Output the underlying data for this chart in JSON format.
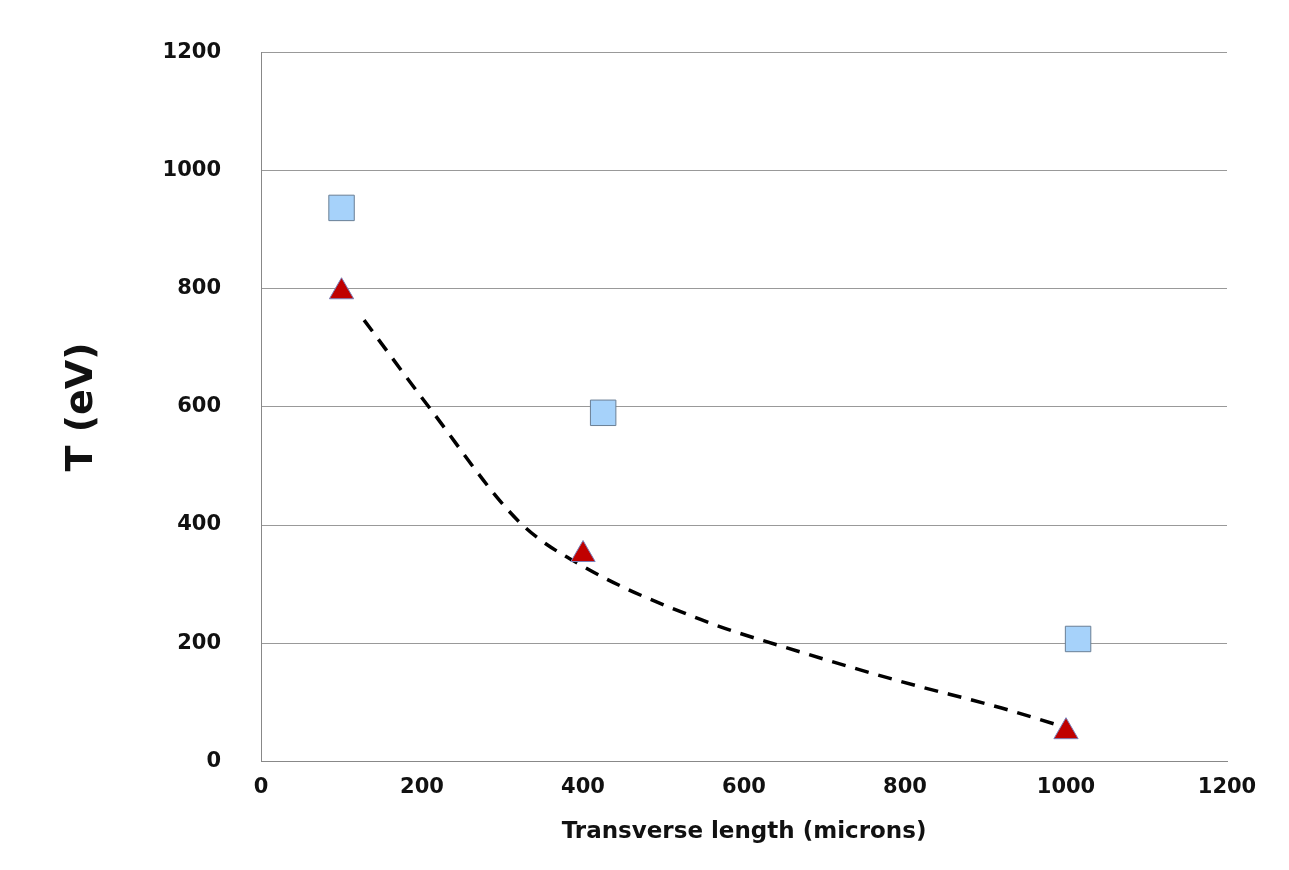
{
  "chart_data": {
    "type": "scatter",
    "xlabel": "Transverse length (microns)",
    "ylabel": "T (eV)",
    "xlim": [
      0,
      1200
    ],
    "xticks": [
      0,
      200,
      400,
      600,
      800,
      1000,
      1200
    ],
    "ylim": [
      0,
      1200
    ],
    "yticks": [
      0,
      200,
      400,
      600,
      800,
      1000,
      1200
    ],
    "grid": "y",
    "legend": false,
    "series": [
      {
        "marker": "square",
        "color": "#a6d2fa",
        "x": [
          100,
          425,
          1015
        ],
        "values": [
          937,
          590,
          207
        ]
      },
      {
        "type": "line",
        "marker": "none",
        "line_style": "dashed",
        "color": "#000000",
        "x": [
          128,
          209,
          321,
          400,
          546,
          670,
          795,
          920,
          988
        ],
        "values": [
          747,
          599,
          405,
          330,
          240,
          185,
          135,
          90,
          62
        ]
      },
      {
        "marker": "triangle",
        "color": "#c00000",
        "x": [
          100,
          400,
          1000
        ],
        "values": [
          795,
          350,
          50
        ]
      }
    ]
  }
}
